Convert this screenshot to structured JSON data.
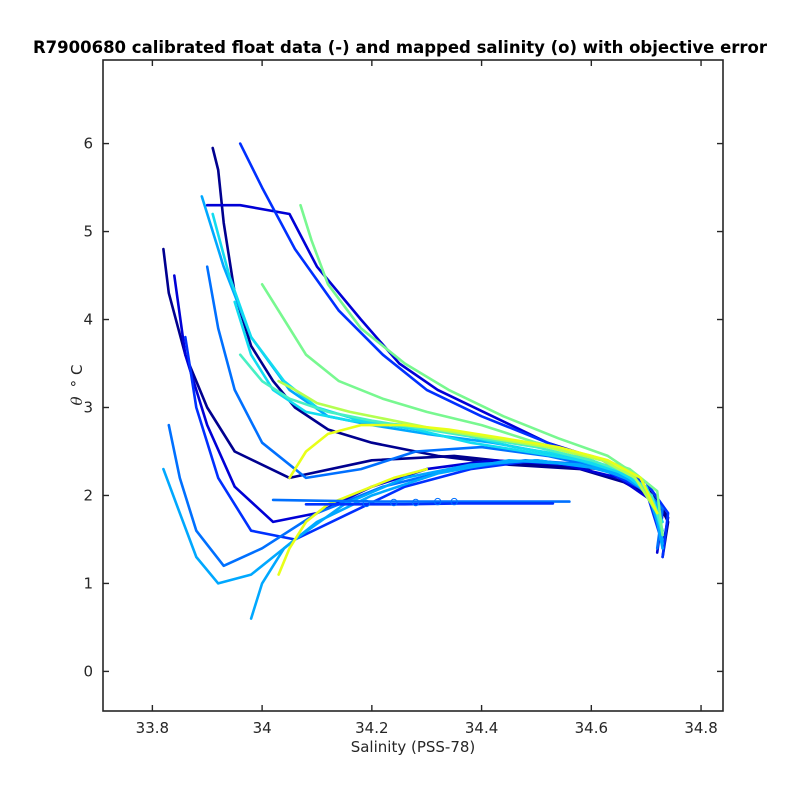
{
  "chart_data": {
    "type": "line",
    "title": "R7900680 calibrated float data (-) and mapped salinity (o) with objective error",
    "xlabel": "Salinity (PSS-78)",
    "ylabel_symbol": "θ",
    "ylabel_unit": "° C",
    "xlim": [
      33.71,
      34.84
    ],
    "ylim": [
      -0.45,
      6.95
    ],
    "x_ticks": [
      33.8,
      34,
      34.2,
      34.4,
      34.6,
      34.8
    ],
    "x_tick_labels": [
      "33.8",
      "34",
      "34.2",
      "34.4",
      "34.6",
      "34.8"
    ],
    "y_ticks": [
      0,
      1,
      2,
      3,
      4,
      5,
      6
    ],
    "y_tick_labels": [
      "0",
      "1",
      "2",
      "3",
      "4",
      "5",
      "6"
    ],
    "grid": false,
    "colormap": "jet (profile index)",
    "colors": [
      "#00008f",
      "#0000d6",
      "#0030ff",
      "#0070ff",
      "#00a8ff",
      "#12dcf0",
      "#48f0c4",
      "#78f890",
      "#b4ff50",
      "#e8ff18"
    ],
    "profiles": [
      {
        "color_index": 0,
        "x": [
          33.91,
          33.92,
          33.93,
          33.95,
          33.98,
          34.02,
          34.06,
          34.12,
          34.2,
          34.32,
          34.45,
          34.58,
          34.66,
          34.72,
          34.74,
          34.73
        ],
        "y": [
          5.95,
          5.7,
          5.1,
          4.3,
          3.7,
          3.3,
          3.0,
          2.75,
          2.6,
          2.45,
          2.35,
          2.3,
          2.15,
          1.95,
          1.7,
          1.3
        ]
      },
      {
        "color_index": 0,
        "x": [
          33.82,
          33.83,
          33.86,
          33.9,
          33.95,
          34.05,
          34.2,
          34.35,
          34.5,
          34.62,
          34.7,
          34.74,
          34.73
        ],
        "y": [
          4.8,
          4.3,
          3.6,
          3.0,
          2.5,
          2.2,
          2.4,
          2.45,
          2.35,
          2.3,
          2.1,
          1.75,
          1.4
        ]
      },
      {
        "color_index": 1,
        "x": [
          33.9,
          33.96,
          34.05,
          34.1,
          34.18,
          34.25,
          34.32,
          34.42,
          34.52,
          34.62,
          34.69,
          34.73,
          34.72
        ],
        "y": [
          5.3,
          5.3,
          5.2,
          4.6,
          4.0,
          3.5,
          3.2,
          2.9,
          2.6,
          2.4,
          2.15,
          1.8,
          1.35
        ]
      },
      {
        "color_index": 1,
        "x": [
          33.84,
          33.86,
          33.9,
          33.95,
          34.02,
          34.1,
          34.2,
          34.3,
          34.42,
          34.55,
          34.65,
          34.72,
          34.73
        ],
        "y": [
          4.5,
          3.6,
          2.8,
          2.1,
          1.7,
          1.8,
          2.1,
          2.3,
          2.4,
          2.35,
          2.2,
          1.9,
          1.5
        ]
      },
      {
        "color_index": 2,
        "x": [
          33.96,
          34.0,
          34.06,
          34.14,
          34.22,
          34.3,
          34.4,
          34.52,
          34.62,
          34.7,
          34.74,
          34.73
        ],
        "y": [
          6.0,
          5.5,
          4.8,
          4.1,
          3.6,
          3.2,
          2.9,
          2.6,
          2.35,
          2.15,
          1.8,
          1.3
        ]
      },
      {
        "color_index": 2,
        "x": [
          33.86,
          33.88,
          33.92,
          33.98,
          34.06,
          34.16,
          34.26,
          34.38,
          34.5,
          34.62,
          34.7,
          34.73
        ],
        "y": [
          3.8,
          3.0,
          2.2,
          1.6,
          1.5,
          1.8,
          2.1,
          2.3,
          2.4,
          2.3,
          2.05,
          1.45
        ]
      },
      {
        "color_index": 3,
        "x": [
          33.83,
          33.85,
          33.88,
          33.93,
          34.0,
          34.1,
          34.22,
          34.35,
          34.48,
          34.6,
          34.68,
          34.73,
          34.72
        ],
        "y": [
          2.8,
          2.2,
          1.6,
          1.2,
          1.4,
          1.8,
          2.1,
          2.3,
          2.4,
          2.35,
          2.2,
          1.85,
          1.4
        ]
      },
      {
        "color_index": 3,
        "x": [
          33.9,
          33.92,
          33.95,
          34.0,
          34.08,
          34.18,
          34.28,
          34.4,
          34.52,
          34.63,
          34.7,
          34.73
        ],
        "y": [
          4.6,
          3.9,
          3.2,
          2.6,
          2.2,
          2.3,
          2.5,
          2.55,
          2.45,
          2.3,
          2.1,
          1.6
        ]
      },
      {
        "color_index": 4,
        "x": [
          33.82,
          33.85,
          33.88,
          33.92,
          33.98,
          34.06,
          34.15,
          34.26,
          34.38,
          34.5,
          34.62,
          34.7,
          34.73
        ],
        "y": [
          2.3,
          1.8,
          1.3,
          1.0,
          1.1,
          1.5,
          1.9,
          2.2,
          2.35,
          2.4,
          2.3,
          2.1,
          1.5
        ]
      },
      {
        "color_index": 4,
        "x": [
          33.89,
          33.93,
          33.98,
          34.05,
          34.12,
          34.2,
          34.3,
          34.42,
          34.55,
          34.65,
          34.71,
          34.73
        ],
        "y": [
          5.4,
          4.6,
          3.8,
          3.2,
          2.9,
          2.8,
          2.7,
          2.6,
          2.45,
          2.25,
          2.0,
          1.4
        ]
      },
      {
        "color_index": 4,
        "x": [
          33.98,
          34.0,
          34.04,
          34.1,
          34.2,
          34.32,
          34.45,
          34.58,
          34.67,
          34.72,
          34.73
        ],
        "y": [
          0.6,
          1.0,
          1.4,
          1.7,
          2.0,
          2.25,
          2.4,
          2.35,
          2.2,
          1.9,
          1.45
        ]
      },
      {
        "color_index": 5,
        "x": [
          33.91,
          33.94,
          33.98,
          34.04,
          34.1,
          34.18,
          34.28,
          34.38,
          34.48,
          34.58,
          34.66,
          34.71,
          34.73
        ],
        "y": [
          5.2,
          4.5,
          3.8,
          3.3,
          3.0,
          2.85,
          2.75,
          2.6,
          2.5,
          2.4,
          2.25,
          2.0,
          1.55
        ]
      },
      {
        "color_index": 5,
        "x": [
          33.95,
          33.98,
          34.02,
          34.08,
          34.16,
          34.26,
          34.36,
          34.46,
          34.56,
          34.64,
          34.7,
          34.73
        ],
        "y": [
          4.2,
          3.6,
          3.2,
          2.95,
          2.85,
          2.8,
          2.7,
          2.55,
          2.45,
          2.3,
          2.1,
          1.7
        ]
      },
      {
        "color_index": 6,
        "x": [
          33.96,
          34.0,
          34.05,
          34.12,
          34.2,
          34.3,
          34.4,
          34.5,
          34.6,
          34.67,
          34.71,
          34.73
        ],
        "y": [
          3.6,
          3.3,
          3.1,
          2.95,
          2.85,
          2.75,
          2.65,
          2.55,
          2.4,
          2.25,
          2.0,
          1.6
        ]
      },
      {
        "color_index": 7,
        "x": [
          34.0,
          34.04,
          34.08,
          34.14,
          34.22,
          34.3,
          34.4,
          34.5,
          34.6,
          34.67,
          34.72,
          34.73
        ],
        "y": [
          4.4,
          4.0,
          3.6,
          3.3,
          3.1,
          2.95,
          2.8,
          2.6,
          2.45,
          2.3,
          2.05,
          1.55
        ]
      },
      {
        "color_index": 7,
        "x": [
          34.07,
          34.09,
          34.12,
          34.18,
          34.26,
          34.34,
          34.44,
          34.54,
          34.63,
          34.69,
          34.72
        ],
        "y": [
          5.3,
          4.9,
          4.4,
          3.9,
          3.5,
          3.2,
          2.9,
          2.65,
          2.45,
          2.2,
          1.8
        ]
      },
      {
        "color_index": 8,
        "x": [
          34.03,
          34.06,
          34.1,
          34.16,
          34.24,
          34.32,
          34.42,
          34.52,
          34.62,
          34.68,
          34.72
        ],
        "y": [
          3.3,
          3.2,
          3.05,
          2.95,
          2.85,
          2.75,
          2.65,
          2.55,
          2.4,
          2.2,
          1.8
        ]
      },
      {
        "color_index": 9,
        "x": [
          34.05,
          34.08,
          34.12,
          34.18,
          34.26,
          34.34,
          34.44,
          34.54,
          34.63,
          34.69,
          34.72
        ],
        "y": [
          2.2,
          2.5,
          2.7,
          2.8,
          2.8,
          2.75,
          2.65,
          2.55,
          2.4,
          2.2,
          1.8
        ]
      },
      {
        "color_index": 9,
        "x": [
          34.03,
          34.05,
          34.08,
          34.12,
          34.18,
          34.24,
          34.3
        ],
        "y": [
          1.1,
          1.4,
          1.7,
          1.9,
          2.05,
          2.2,
          2.3
        ]
      },
      {
        "color_index": 3,
        "x": [
          34.02,
          34.1,
          34.2,
          34.3,
          34.42,
          34.56
        ],
        "y": [
          1.95,
          1.94,
          1.93,
          1.93,
          1.93,
          1.93
        ]
      },
      {
        "color_index": 2,
        "x": [
          34.08,
          34.16,
          34.26,
          34.36,
          34.46,
          34.53
        ],
        "y": [
          1.9,
          1.9,
          1.9,
          1.91,
          1.91,
          1.91
        ]
      }
    ],
    "mapped_points": [
      {
        "x": 34.24,
        "y": 1.92
      },
      {
        "x": 34.28,
        "y": 1.92
      },
      {
        "x": 34.32,
        "y": 1.93
      },
      {
        "x": 34.35,
        "y": 1.93
      },
      {
        "x": 34.19,
        "y": 1.91
      }
    ]
  }
}
